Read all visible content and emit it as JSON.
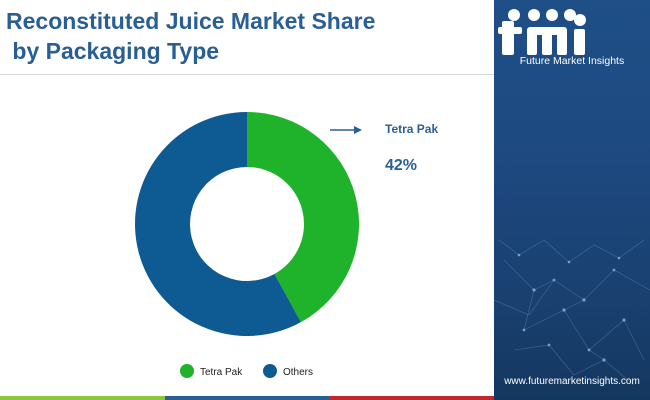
{
  "title_lines": [
    "Reconstituted Juice Market Share",
    " by Packaging Type"
  ],
  "brand": {
    "name": "Future Market Insights",
    "website": "www.futuremarketinsights.com"
  },
  "colors": {
    "title": "#2a5f95",
    "accent": "#2a5f95",
    "bottom_bar": [
      "#8cc63f",
      "#2a5f95",
      "#c1272d"
    ]
  },
  "chart_data": {
    "type": "pie",
    "donut": true,
    "categories": [
      "Tetra Pak",
      "Others"
    ],
    "values": [
      42,
      58
    ],
    "colors": [
      "#1fb22b",
      "#0e5a93"
    ],
    "start_angle_deg": 0,
    "direction": "clockwise",
    "callout": {
      "label": "Tetra Pak",
      "value_text": "42%"
    },
    "legend_position": "bottom"
  }
}
